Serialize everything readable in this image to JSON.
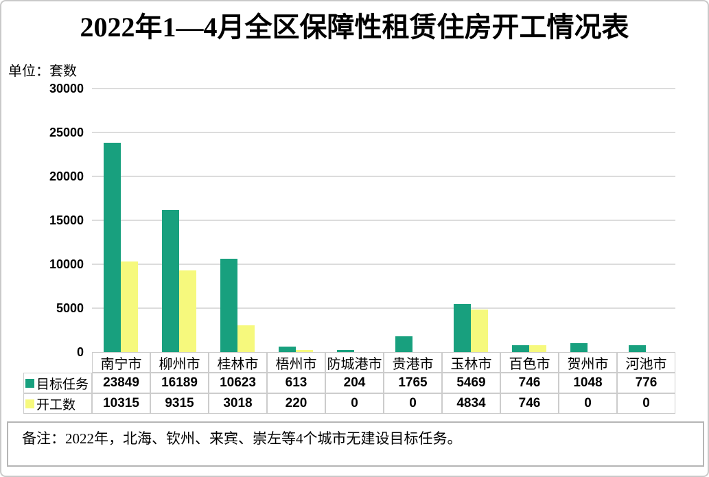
{
  "page": {
    "title": "2022年1—4月全区保障性租赁住房开工情况表",
    "unit_label": "单位：套数",
    "note": "备注：2022年，北海、钦州、来宾、崇左等4个城市无建设目标任务。"
  },
  "chart_data": {
    "type": "bar",
    "title": "2022年1—4月全区保障性租赁住房开工情况表",
    "unit_label": "单位：套数",
    "categories": [
      "南宁市",
      "柳州市",
      "桂林市",
      "梧州市",
      "防城港市",
      "贵港市",
      "玉林市",
      "百色市",
      "贺州市",
      "河池市"
    ],
    "series": [
      {
        "name": "目标任务",
        "color": "#18A07E",
        "values": [
          23849,
          16189,
          10623,
          613,
          204,
          1765,
          5469,
          746,
          1048,
          776
        ]
      },
      {
        "name": "开工数",
        "color": "#F6F97D",
        "values": [
          10315,
          9315,
          3018,
          220,
          0,
          0,
          4834,
          746,
          0,
          0
        ]
      }
    ],
    "ylim": [
      0,
      30000
    ],
    "ytick_interval": 5000,
    "yticks": [
      "0",
      "5000",
      "10000",
      "15000",
      "20000",
      "25000",
      "30000"
    ],
    "grid": true,
    "legend_position": "table-rows",
    "colors": {
      "gridline": "#DCDCDC",
      "table_border": "#CCCCCC"
    }
  }
}
